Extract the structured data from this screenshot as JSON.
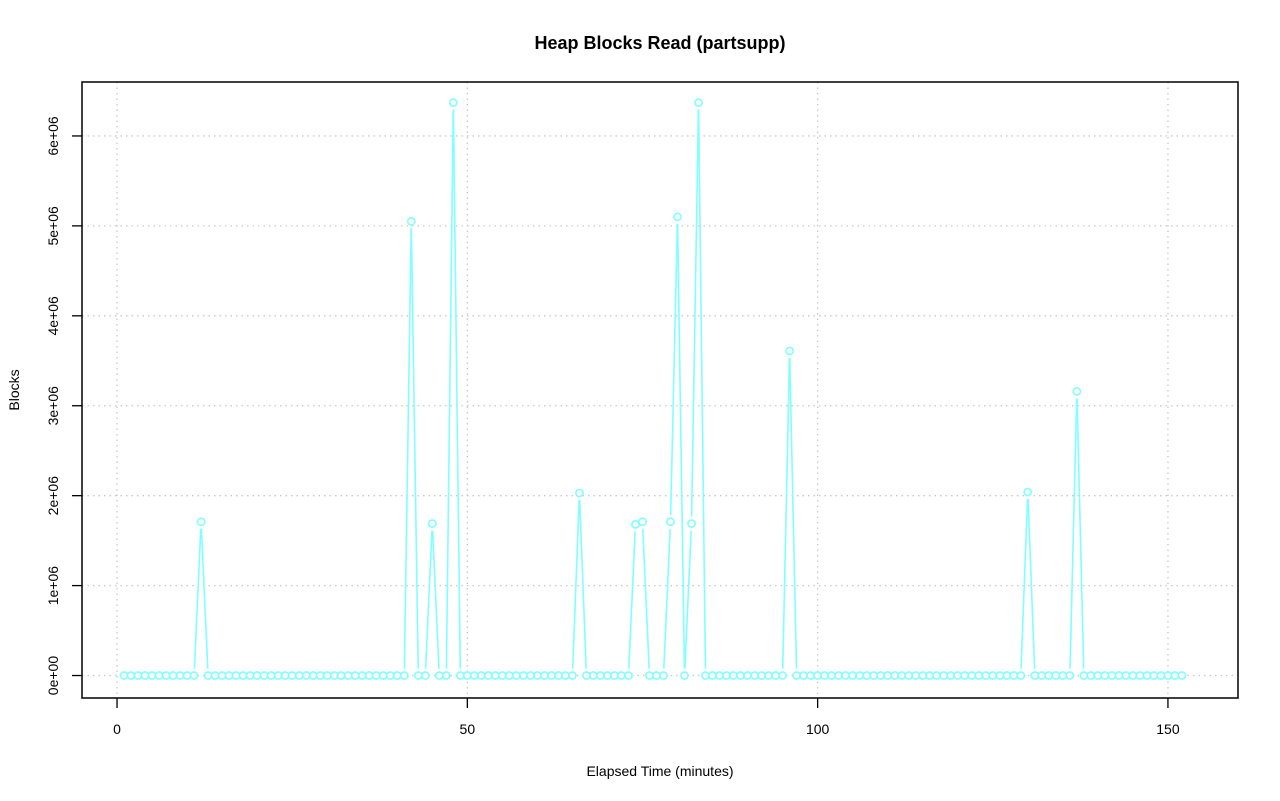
{
  "chart_data": {
    "type": "line",
    "title": "Heap Blocks Read (partsupp)",
    "xlabel": "Elapsed Time (minutes)",
    "ylabel": "Blocks",
    "xlim": [
      -5,
      160
    ],
    "ylim": [
      -250000,
      6600000
    ],
    "x_ticks": [
      0,
      50,
      100,
      150
    ],
    "x_tick_labels": [
      "0",
      "50",
      "100",
      "150"
    ],
    "y_ticks": [
      0,
      1000000,
      2000000,
      3000000,
      4000000,
      5000000,
      6000000
    ],
    "y_tick_labels": [
      "0e+00",
      "1e+06",
      "2e+06",
      "3e+06",
      "4e+06",
      "5e+06",
      "6e+06"
    ],
    "grid": true,
    "colors": {
      "series": "#7fffff"
    },
    "series": [
      {
        "x_start": 1,
        "x_step": 1,
        "values": [
          0,
          0,
          0,
          0,
          0,
          0,
          0,
          0,
          0,
          0,
          0,
          1710000,
          0,
          0,
          0,
          0,
          0,
          0,
          0,
          0,
          0,
          0,
          0,
          0,
          0,
          0,
          0,
          0,
          0,
          0,
          0,
          0,
          0,
          0,
          0,
          0,
          0,
          0,
          0,
          0,
          0,
          5050000,
          0,
          0,
          1690000,
          0,
          0,
          6370000,
          0,
          0,
          0,
          0,
          0,
          0,
          0,
          0,
          0,
          0,
          0,
          0,
          0,
          0,
          0,
          0,
          0,
          2030000,
          0,
          0,
          0,
          0,
          0,
          0,
          0,
          1680000,
          1710000,
          0,
          0,
          0,
          1710000,
          5100000,
          0,
          1690000,
          6370000,
          0,
          0,
          0,
          0,
          0,
          0,
          0,
          0,
          0,
          0,
          0,
          0,
          3610000,
          0,
          0,
          0,
          0,
          0,
          0,
          0,
          0,
          0,
          0,
          0,
          0,
          0,
          0,
          0,
          0,
          0,
          0,
          0,
          0,
          0,
          0,
          0,
          0,
          0,
          0,
          0,
          0,
          0,
          0,
          0,
          0,
          0,
          2040000,
          0,
          0,
          0,
          0,
          0,
          0,
          3160000,
          0,
          0,
          0,
          0,
          0,
          0,
          0,
          0,
          0,
          0,
          0,
          0,
          0,
          0,
          0
        ]
      }
    ]
  }
}
